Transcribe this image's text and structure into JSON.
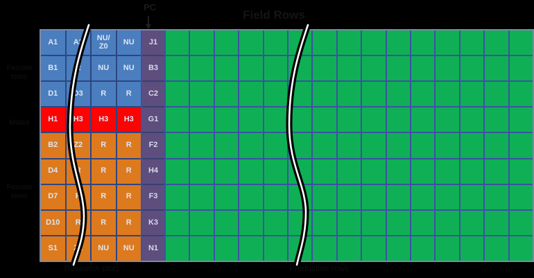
{
  "title": "Field Rows",
  "pc": {
    "label": "PC"
  },
  "left_row_group_labels": [
    {
      "text": "Female\nrows"
    },
    {
      "text": "Males"
    },
    {
      "text": "Female\nrows"
    }
  ],
  "captions": {
    "left_block": "Research plots",
    "field": "Production rows"
  },
  "left_block": {
    "rows": [
      {
        "color": "blue",
        "cells": [
          "A1",
          "A2",
          "NU/\nZ0",
          "NU"
        ]
      },
      {
        "color": "blue",
        "cells": [
          "B1",
          "R",
          "NU",
          "NU"
        ]
      },
      {
        "color": "blue",
        "cells": [
          "D1",
          "D3",
          "R",
          "R"
        ]
      },
      {
        "color": "red",
        "cells": [
          "H1",
          "H3",
          "H3",
          "H3"
        ]
      },
      {
        "color": "orange",
        "cells": [
          "B2",
          "Z2",
          "R",
          "R"
        ]
      },
      {
        "color": "orange",
        "cells": [
          "D4",
          "R",
          "R",
          "R"
        ]
      },
      {
        "color": "orange",
        "cells": [
          "D7",
          "R",
          "R",
          "R"
        ]
      },
      {
        "color": "orange",
        "cells": [
          "D10",
          "R",
          "R",
          "R"
        ]
      },
      {
        "color": "orange",
        "cells": [
          "S1",
          "Z1",
          "NU",
          "NU"
        ]
      }
    ]
  },
  "pc_column": {
    "cells": [
      "J1",
      "B3",
      "C2",
      "G1",
      "F2",
      "H4",
      "F3",
      "K3",
      "N1"
    ]
  },
  "field_grid": {
    "columns": 15,
    "rows": 9
  },
  "colors": {
    "background": "#000000",
    "blue_cell": "#4a7ebf",
    "red_cell": "#fa0404",
    "orange_cell": "#dd7a1e",
    "purple_cell": "#5d4e7e",
    "green_cell": "#0fb055",
    "gridline": "#3d51a2",
    "table_border": "#7d89a8",
    "cell_text": "#dde4f2"
  }
}
